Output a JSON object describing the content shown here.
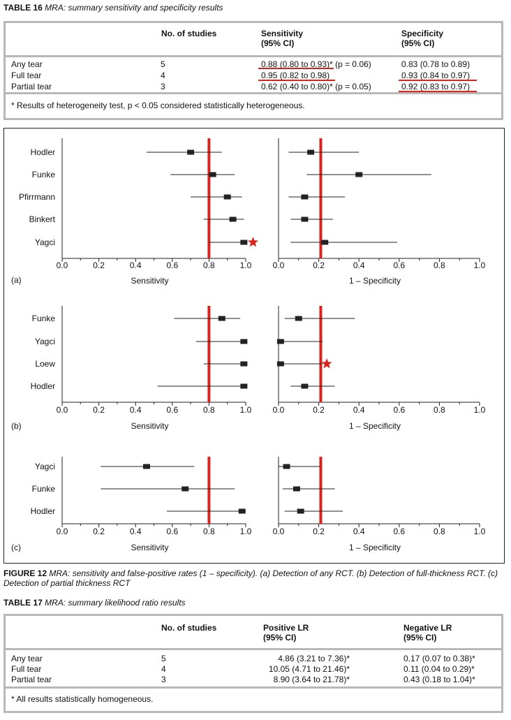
{
  "table16": {
    "caption_label": "TABLE 16",
    "caption_text": "MRA: summary sensitivity and specificity results",
    "headers": {
      "studies": "No. of studies",
      "sensitivity": "Sensitivity",
      "sensitivity_ci": "(95% CI)",
      "specificity": "Specificity",
      "specificity_ci": "(95% CI)"
    },
    "rows": [
      {
        "label": "Any tear",
        "studies": "5",
        "sens": "0.88 (0.80 to 0.93)*",
        "sens_p": " (p = 0.06)",
        "spec": "0.83 (0.78 to 0.89)"
      },
      {
        "label": "Full tear",
        "studies": "4",
        "sens": "0.95 (0.82 to 0.98)",
        "sens_p": "",
        "spec": "0.93 (0.84 to 0.97)"
      },
      {
        "label": "Partial tear",
        "studies": "3",
        "sens": "0.62 (0.40 to 0.80)*",
        "sens_p": " (p = 0.05)",
        "spec": "0.92 (0.83 to 0.97)"
      }
    ],
    "footnote": "* Results of heterogeneity test, p < 0.05 considered statistically heterogeneous."
  },
  "chart_data": [
    {
      "type": "forest",
      "panel": "(a)",
      "studies": [
        "Hodler",
        "Funke",
        "Pfirrmann",
        "Binkert",
        "Yagci"
      ],
      "sensitivity": {
        "xlabel": "Sensitivity",
        "xlim": [
          0,
          1
        ],
        "ticks": [
          "0.0",
          "0.2",
          "0.4",
          "0.6",
          "0.8",
          "1.0"
        ],
        "reference": 0.8,
        "points": [
          {
            "est": 0.7,
            "lo": 0.46,
            "hi": 0.87
          },
          {
            "est": 0.82,
            "lo": 0.59,
            "hi": 0.94
          },
          {
            "est": 0.9,
            "lo": 0.7,
            "hi": 0.98
          },
          {
            "est": 0.93,
            "lo": 0.77,
            "hi": 0.99
          },
          {
            "est": 0.99,
            "lo": 0.8,
            "hi": 1.0
          }
        ],
        "star_index": 4,
        "star_value": 1.04
      },
      "fpr": {
        "xlabel": "1 – Specificity",
        "xlim": [
          0,
          1
        ],
        "ticks": [
          "0.0",
          "0.2",
          "0.4",
          "0.6",
          "0.8",
          "1.0"
        ],
        "reference": 0.21,
        "points": [
          {
            "est": 0.16,
            "lo": 0.05,
            "hi": 0.4
          },
          {
            "est": 0.4,
            "lo": 0.14,
            "hi": 0.76
          },
          {
            "est": 0.13,
            "lo": 0.05,
            "hi": 0.33
          },
          {
            "est": 0.13,
            "lo": 0.06,
            "hi": 0.27
          },
          {
            "est": 0.23,
            "lo": 0.06,
            "hi": 0.59
          }
        ]
      }
    },
    {
      "type": "forest",
      "panel": "(b)",
      "studies": [
        "Funke",
        "Yagci",
        "Loew",
        "Hodler"
      ],
      "sensitivity": {
        "xlabel": "Sensitivity",
        "xlim": [
          0,
          1
        ],
        "ticks": [
          "0.0",
          "0.2",
          "0.4",
          "0.6",
          "0.8",
          "1.0"
        ],
        "reference": 0.8,
        "points": [
          {
            "est": 0.87,
            "lo": 0.61,
            "hi": 0.97
          },
          {
            "est": 0.99,
            "lo": 0.73,
            "hi": 1.0
          },
          {
            "est": 0.99,
            "lo": 0.77,
            "hi": 1.0
          },
          {
            "est": 0.99,
            "lo": 0.52,
            "hi": 1.0
          }
        ]
      },
      "fpr": {
        "xlabel": "1 – Specificity",
        "xlim": [
          0,
          1
        ],
        "ticks": [
          "0.0",
          "0.2",
          "0.4",
          "0.6",
          "0.8",
          "1.0"
        ],
        "reference": 0.21,
        "points": [
          {
            "est": 0.1,
            "lo": 0.03,
            "hi": 0.38
          },
          {
            "est": 0.01,
            "lo": 0.0,
            "hi": 0.22
          },
          {
            "est": 0.01,
            "lo": 0.0,
            "hi": 0.22
          },
          {
            "est": 0.13,
            "lo": 0.06,
            "hi": 0.28
          }
        ],
        "star_index": 2,
        "star_value": 0.24
      }
    },
    {
      "type": "forest",
      "panel": "(c)",
      "studies": [
        "Yagci",
        "Funke",
        "Hodler"
      ],
      "sensitivity": {
        "xlabel": "Sensitivity",
        "xlim": [
          0,
          1
        ],
        "ticks": [
          "0.0",
          "0.2",
          "0.4",
          "0.6",
          "0.8",
          "1.0"
        ],
        "reference": 0.8,
        "points": [
          {
            "est": 0.46,
            "lo": 0.21,
            "hi": 0.72
          },
          {
            "est": 0.67,
            "lo": 0.21,
            "hi": 0.94
          },
          {
            "est": 0.98,
            "lo": 0.57,
            "hi": 1.0
          }
        ]
      },
      "fpr": {
        "xlabel": "1 – Specificity",
        "xlim": [
          0,
          1
        ],
        "ticks": [
          "0.0",
          "0.2",
          "0.4",
          "0.6",
          "0.8",
          "1.0"
        ],
        "reference": 0.21,
        "points": [
          {
            "est": 0.04,
            "lo": 0.0,
            "hi": 0.21
          },
          {
            "est": 0.09,
            "lo": 0.02,
            "hi": 0.28
          },
          {
            "est": 0.11,
            "lo": 0.03,
            "hi": 0.32
          }
        ]
      }
    }
  ],
  "figure12": {
    "caption_label": "FIGURE 12",
    "caption_text": "MRA: sensitivity and false-positive rates (1 – specificity). (a) Detection of any RCT. (b) Detection of full-thickness RCT. (c) Detection of partial thickness RCT",
    "colors": {
      "reference_line": "#d9231d",
      "marker": "#222222",
      "star": "#d9231d"
    }
  },
  "table17": {
    "caption_label": "TABLE 17",
    "caption_text": "MRA: summary likelihood ratio results",
    "headers": {
      "studies": "No. of studies",
      "positive": "Positive LR",
      "positive_ci": "(95% CI)",
      "negative": "Negative LR",
      "negative_ci": "(95% CI)"
    },
    "rows": [
      {
        "label": "Any tear",
        "studies": "5",
        "pos": "4.86 (3.21 to 7.36)*",
        "neg": "0.17 (0.07 to 0.38)*"
      },
      {
        "label": "Full tear",
        "studies": "4",
        "pos": "10.05 (4.71 to 21.46)*",
        "neg": "0.11 (0.04 to 0.29)*"
      },
      {
        "label": "Partial tear",
        "studies": "3",
        "pos": "8.90 (3.64 to 21.78)*",
        "neg": "0.43 (0.18 to 1.04)*"
      }
    ],
    "footnote": "* All results statistically homogeneous."
  }
}
